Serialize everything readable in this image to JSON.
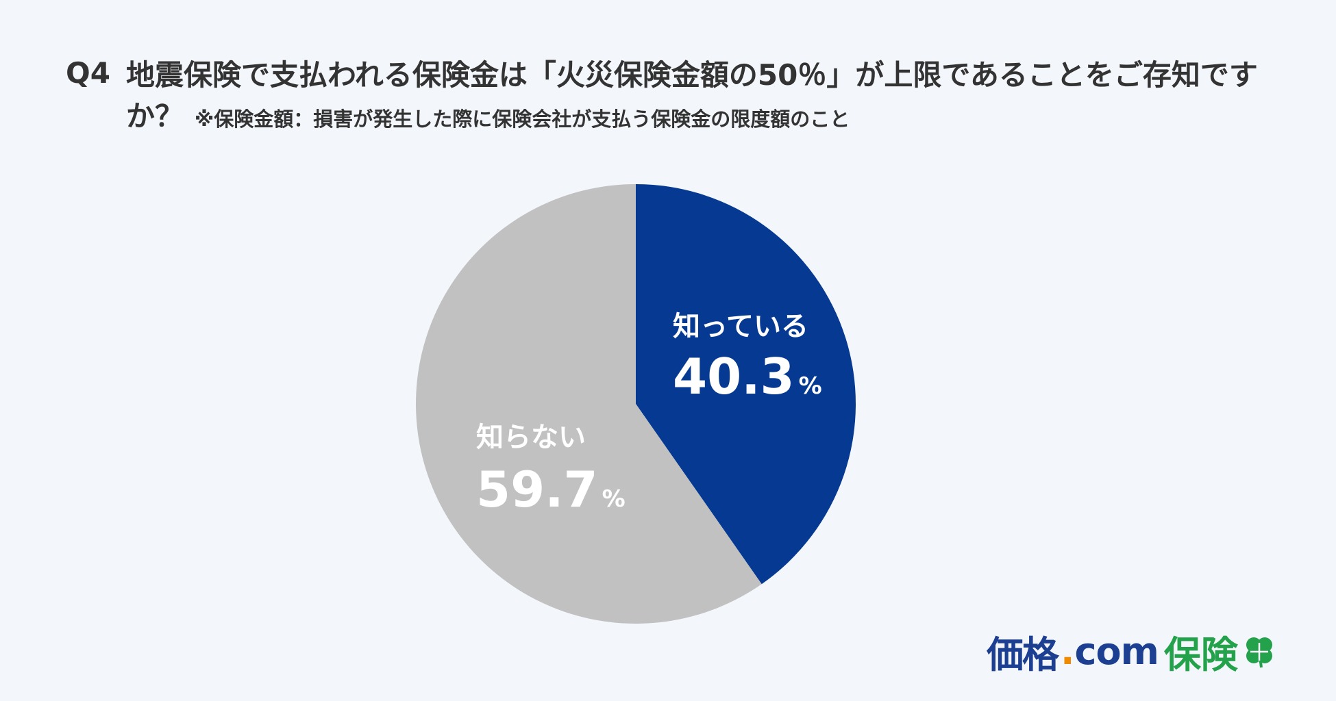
{
  "question": {
    "label": "Q4",
    "title": "地震保険で支払われる保険金は「火災保険金額の50％」が上限であることをご存知ですか？",
    "note": "※保険金額：損害が発生した際に保険会社が支払う保険金の限度額のこと"
  },
  "chart_data": {
    "type": "pie",
    "title": "",
    "slices": [
      {
        "label": "知っている",
        "value": 40.3,
        "unit": "%",
        "color": "#063a92"
      },
      {
        "label": "知らない",
        "value": 59.7,
        "unit": "%",
        "color": "#c1c1c1"
      }
    ],
    "start": "12 o'clock",
    "direction": "clockwise",
    "legend": "none"
  },
  "logo": {
    "kakaku": "価格",
    "dot": ".",
    "com": "com",
    "hoken": "保険",
    "icon": "clover-icon",
    "colors": {
      "navy": "#1d3f92",
      "orange": "#f08a00",
      "green": "#24a24b"
    }
  }
}
